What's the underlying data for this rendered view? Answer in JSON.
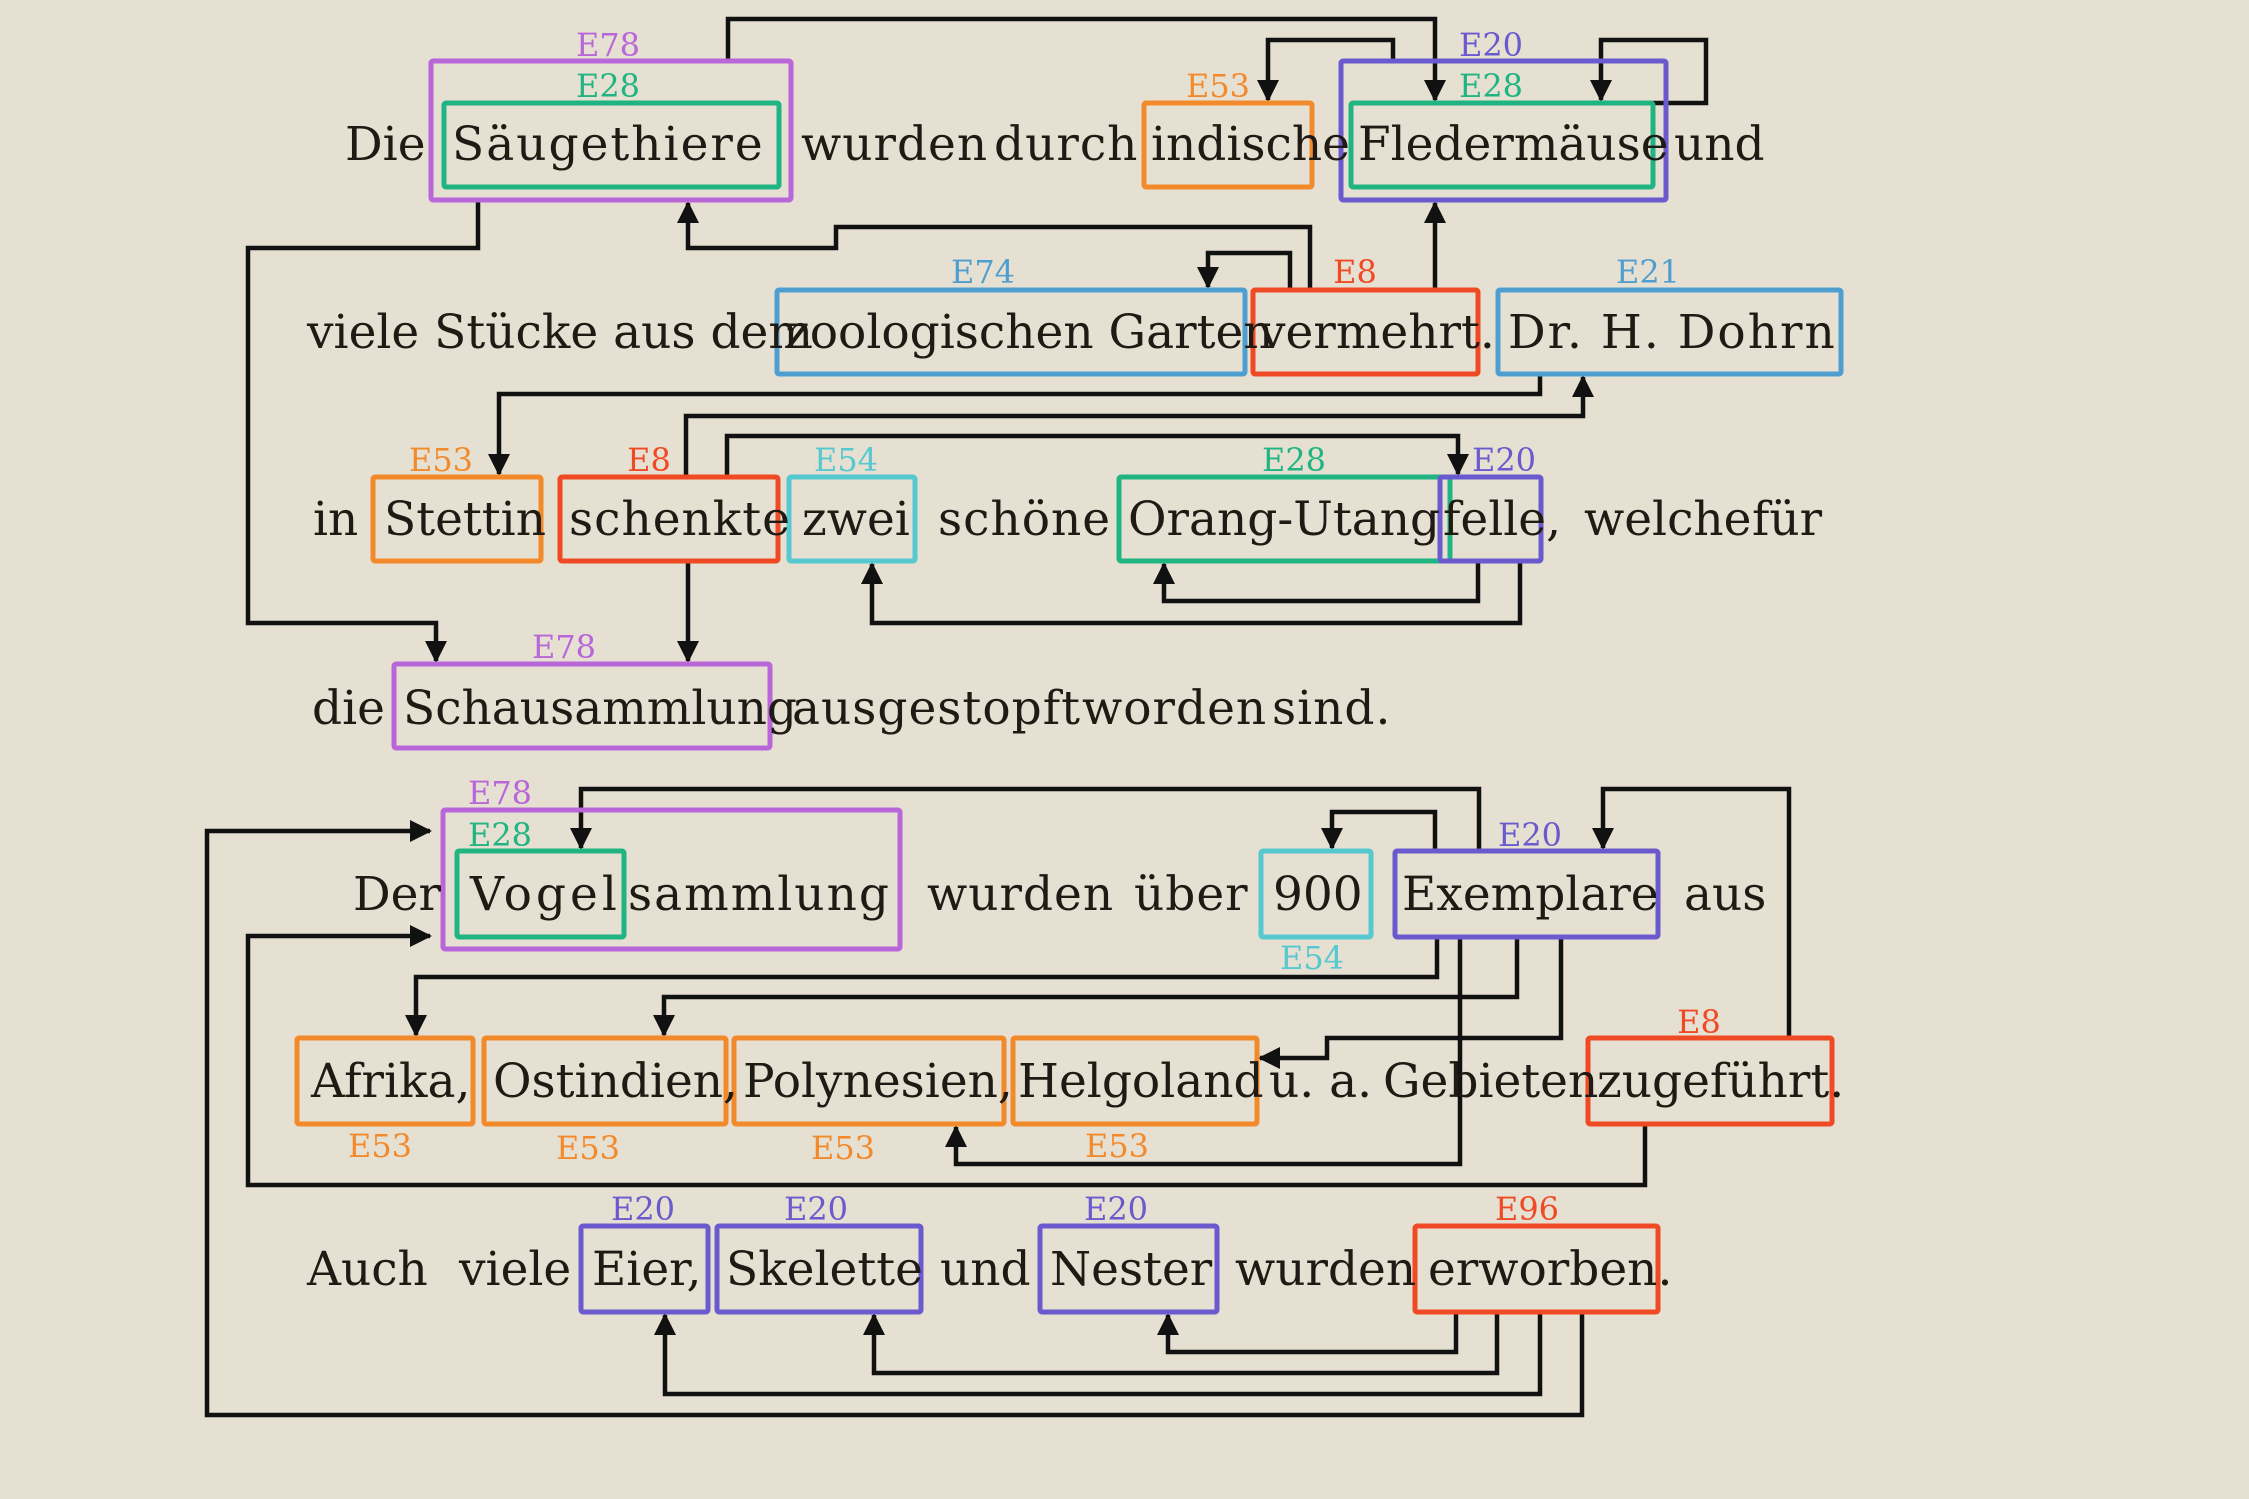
{
  "colors": {
    "E78": "#b866d8",
    "E28": "#1fb482",
    "E53": "#f28a2b",
    "E20": "#6a5acd",
    "E74": "#4e9fd0",
    "E8": "#f04a24",
    "E21": "#4e9fd0",
    "E54": "#56c8d0",
    "E96": "#f04a24"
  },
  "words": [
    "Die",
    "Säugethiere",
    "wurden",
    "durch",
    "indische",
    "Fledermäuse",
    "und",
    "viele Stücke aus dem",
    "zoologischen Garten",
    "vermehrt.",
    "Dr. H. Dohrn",
    "in",
    "Stettin",
    "schenkte",
    "zwei",
    "schöne",
    "Orang-Utang",
    "felle,",
    "welche",
    "für",
    "die",
    "Schausammlung",
    "ausgestopft",
    "worden",
    "sind.",
    "Der",
    "Vogel",
    "sammlung",
    "wurden",
    "über",
    "900",
    "Exemplare",
    "aus",
    "Afrika,",
    "Ostindien,",
    "Polynesien,",
    "Helgoland",
    "u. a.",
    "Gebieten",
    "zugeführt.",
    "Auch",
    "viele",
    "Eier,",
    "Skelette",
    "und",
    "Nester",
    "wurden",
    "erworben."
  ],
  "entities": [
    {
      "text": "Säugethiere",
      "label": "E78"
    },
    {
      "text": "Säugethiere",
      "label": "E28"
    },
    {
      "text": "indische",
      "label": "E53"
    },
    {
      "text": "Fledermäuse",
      "label": "E20"
    },
    {
      "text": "Fledermäuse",
      "label": "E28"
    },
    {
      "text": "zoologischen Garten",
      "label": "E74"
    },
    {
      "text": "vermehrt.",
      "label": "E8"
    },
    {
      "text": "Dr. H. Dohrn",
      "label": "E21"
    },
    {
      "text": "Stettin",
      "label": "E53"
    },
    {
      "text": "schenkte",
      "label": "E8"
    },
    {
      "text": "zwei",
      "label": "E54"
    },
    {
      "text": "Orang-Utang",
      "label": "E28"
    },
    {
      "text": "felle,",
      "label": "E20"
    },
    {
      "text": "Schausammlung",
      "label": "E78"
    },
    {
      "text": "Vogelsammlung",
      "label": "E78"
    },
    {
      "text": "Vogel",
      "label": "E28"
    },
    {
      "text": "900",
      "label": "E54"
    },
    {
      "text": "Exemplare",
      "label": "E20"
    },
    {
      "text": "Afrika,",
      "label": "E53"
    },
    {
      "text": "Ostindien,",
      "label": "E53"
    },
    {
      "text": "Polynesien,",
      "label": "E53"
    },
    {
      "text": "Helgoland",
      "label": "E53"
    },
    {
      "text": "zugeführt.",
      "label": "E8"
    },
    {
      "text": "Eier,",
      "label": "E20"
    },
    {
      "text": "Skelette",
      "label": "E20"
    },
    {
      "text": "Nester",
      "label": "E20"
    },
    {
      "text": "erworben.",
      "label": "E96"
    }
  ]
}
